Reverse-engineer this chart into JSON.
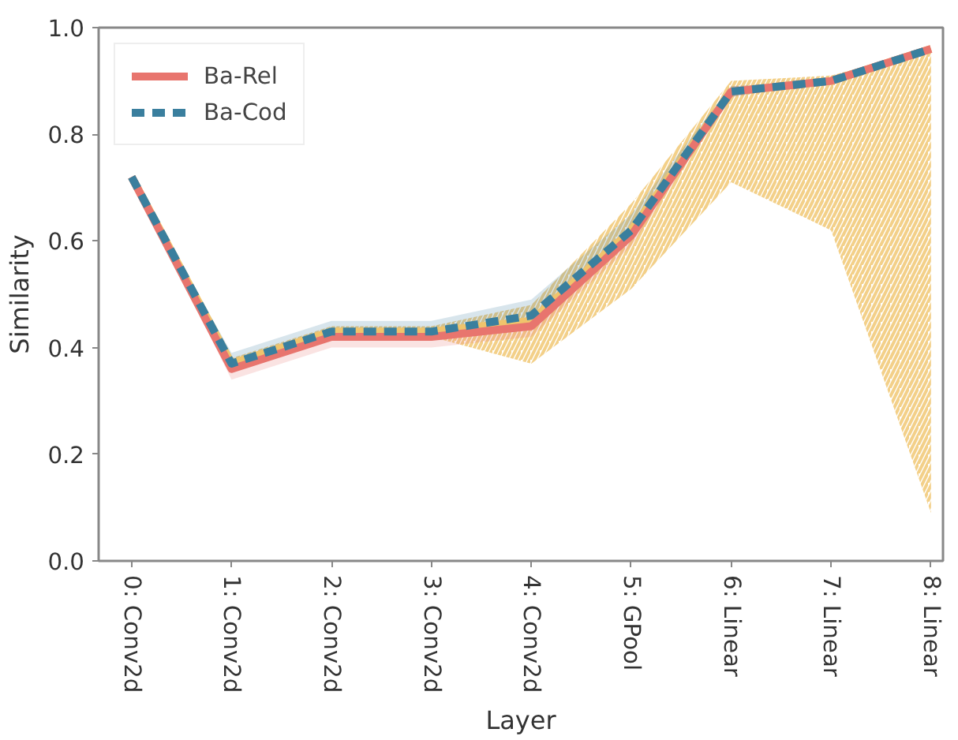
{
  "chart_data": {
    "type": "line",
    "xlabel": "Layer",
    "ylabel": "Similarity",
    "categories": [
      "0: Conv2d",
      "1: Conv2d",
      "2: Conv2d",
      "3: Conv2d",
      "4: Conv2d",
      "5: GPool",
      "6: Linear",
      "7: Linear",
      "8: Linear"
    ],
    "ylim": [
      0,
      1
    ],
    "yticks": [
      {
        "value": 0,
        "label": "0.0"
      },
      0.2,
      0.4,
      0.6,
      0.8,
      {
        "value": 1,
        "label": "1.0"
      }
    ],
    "grid": false,
    "legend": "top left",
    "series": [
      {
        "color": "#f0c46c",
        "line_style": "solid",
        "values": [
          0.72,
          0.37,
          0.43,
          0.43,
          0.45,
          0.62,
          0.88,
          0.9,
          0.96
        ],
        "lower": [
          0.72,
          0.36,
          0.42,
          0.42,
          0.37,
          0.51,
          0.71,
          0.62,
          0.09
        ],
        "upper": [
          0.72,
          0.38,
          0.44,
          0.44,
          0.48,
          0.67,
          0.9,
          0.91,
          0.96
        ]
      },
      {
        "name": "Ba-Rel",
        "color": "#e8756e",
        "line_style": "solid",
        "values": [
          0.72,
          0.36,
          0.42,
          0.42,
          0.44,
          0.61,
          0.88,
          0.9,
          0.96
        ],
        "lower": [
          0.72,
          0.34,
          0.4,
          0.4,
          0.42,
          0.59,
          0.87,
          0.9,
          0.96
        ],
        "upper": [
          0.72,
          0.37,
          0.43,
          0.43,
          0.45,
          0.63,
          0.89,
          0.9,
          0.96
        ]
      },
      {
        "name": "Ba-Cod",
        "color": "#3a7f9e",
        "line_style": "dashed",
        "values": [
          0.72,
          0.37,
          0.43,
          0.43,
          0.46,
          0.62,
          0.88,
          0.9,
          0.96
        ],
        "lower": [
          0.72,
          0.36,
          0.42,
          0.42,
          0.44,
          0.6,
          0.87,
          0.9,
          0.96
        ],
        "upper": [
          0.72,
          0.39,
          0.45,
          0.45,
          0.49,
          0.65,
          0.89,
          0.9,
          0.96
        ]
      }
    ]
  }
}
